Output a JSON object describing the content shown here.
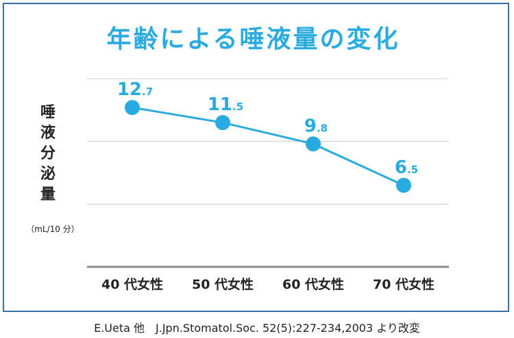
{
  "chart_data": {
    "type": "line",
    "title": "年齢による唾液量の変化",
    "ylabel_chars": [
      "唾",
      "液",
      "分",
      "泌",
      "量"
    ],
    "yunit": "（mL/10 分）",
    "categories": [
      "40 代女性",
      "50 代女性",
      "60 代女性",
      "70 代女性"
    ],
    "series": [
      {
        "values": [
          12.7,
          11.5,
          9.8,
          6.5
        ],
        "labels": [
          {
            "int": "12",
            "dec": ".7"
          },
          {
            "int": "11",
            "dec": ".5"
          },
          {
            "int": "9",
            "dec": ".8"
          },
          {
            "int": "6",
            "dec": ".5"
          }
        ]
      }
    ],
    "ylim": [
      0,
      15
    ],
    "grid": true,
    "colors": {
      "line": "#29abe2",
      "grid": "#cccccc",
      "axis": "#888888",
      "frame": "#3a6fa8"
    }
  },
  "source": "E.Ueta 他　J.Jpn.Stomatol.Soc. 52(5):227-234,2003 より改変"
}
